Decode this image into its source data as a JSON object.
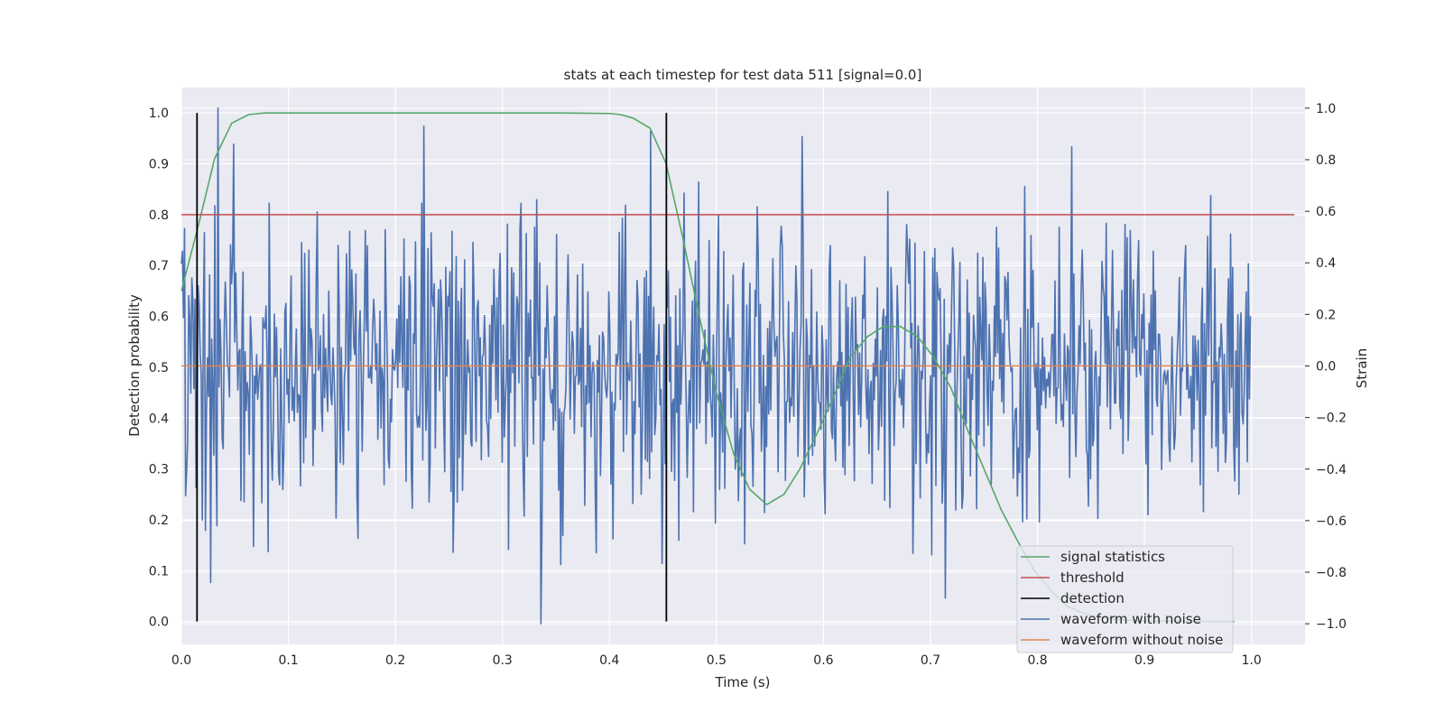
{
  "chart_data": {
    "type": "line",
    "title": "stats at each timestep for test data 511 [signal=0.0]",
    "xlabel": "Time (s)",
    "ylabel": "Detection probability",
    "y2label": "Strain",
    "xlim": [
      0.0,
      1.05
    ],
    "ylim": [
      -0.045,
      1.05
    ],
    "y2lim": [
      -1.08,
      1.08
    ],
    "xticks": [
      "0.0",
      "0.1",
      "0.2",
      "0.3",
      "0.4",
      "0.5",
      "0.6",
      "0.7",
      "0.8",
      "0.9",
      "1.0"
    ],
    "yticks": [
      "0.0",
      "0.1",
      "0.2",
      "0.3",
      "0.4",
      "0.5",
      "0.6",
      "0.7",
      "0.8",
      "0.9",
      "1.0"
    ],
    "y2ticks": [
      "−1.0",
      "−0.8",
      "−0.6",
      "−0.4",
      "−0.2",
      "0.0",
      "0.2",
      "0.4",
      "0.6",
      "0.8",
      "1.0"
    ],
    "grid": true,
    "legend_position": "lower-right",
    "colors": {
      "signal": "#55a868",
      "threshold": "#c44e52",
      "detection": "#000000",
      "noisy": "#4c72b0",
      "clean": "#dd8452",
      "plot_bg": "#eaeaf2",
      "grid": "#ffffff"
    },
    "signal_statistics": {
      "name": "signal statistics",
      "x": [
        0.0,
        0.016,
        0.031,
        0.047,
        0.063,
        0.078,
        0.094,
        0.2,
        0.3,
        0.35,
        0.4,
        0.41,
        0.422,
        0.438,
        0.453,
        0.469,
        0.484,
        0.5,
        0.516,
        0.531,
        0.547,
        0.563,
        0.578,
        0.594,
        0.609,
        0.625,
        0.641,
        0.656,
        0.672,
        0.688,
        0.703,
        0.719,
        0.734,
        0.75,
        0.766,
        0.781,
        0.797,
        0.813,
        0.828,
        0.844,
        0.859,
        0.875,
        0.891,
        0.906,
        0.922,
        0.938,
        0.953,
        0.969,
        0.984
      ],
      "y": [
        0.65,
        0.78,
        0.91,
        0.98,
        0.997,
        1.0,
        1.0,
        1.0,
        1.0,
        1.0,
        0.999,
        0.997,
        0.99,
        0.97,
        0.9,
        0.75,
        0.6,
        0.45,
        0.33,
        0.26,
        0.23,
        0.25,
        0.3,
        0.37,
        0.44,
        0.52,
        0.56,
        0.58,
        0.58,
        0.56,
        0.52,
        0.46,
        0.38,
        0.3,
        0.22,
        0.16,
        0.1,
        0.06,
        0.03,
        0.015,
        0.008,
        0.004,
        0.002,
        0.001,
        0.001,
        0.0005,
        0.0002,
        0.0001,
        0.0
      ]
    },
    "threshold": {
      "name": "threshold",
      "value": 0.8,
      "x": [
        0.0,
        1.04
      ]
    },
    "detections": {
      "name": "detection",
      "x": [
        0.0146,
        0.4532
      ],
      "ymin": 0.0,
      "ymax": 1.0
    },
    "waveform_noisy": {
      "name": "waveform with noise",
      "n": 1024,
      "x_range": [
        0.0,
        0.999
      ],
      "y_range": [
        -1.0,
        1.0
      ],
      "seed": 511,
      "std": 0.28,
      "peaks": [
        [
          0.034,
          1.0
        ],
        [
          0.227,
          0.93
        ],
        [
          0.438,
          0.91
        ],
        [
          0.336,
          -1.0
        ],
        [
          0.027,
          -0.84
        ],
        [
          0.354,
          -0.77
        ],
        [
          0.714,
          -0.9
        ],
        [
          0.081,
          -0.72
        ],
        [
          0.067,
          -0.7
        ],
        [
          0.049,
          0.86
        ],
        [
          0.832,
          0.85
        ],
        [
          0.58,
          0.89
        ]
      ]
    },
    "waveform_clean": {
      "name": "waveform without noise",
      "x": [
        0.0,
        0.999
      ],
      "y": [
        0.0,
        0.0
      ]
    }
  }
}
